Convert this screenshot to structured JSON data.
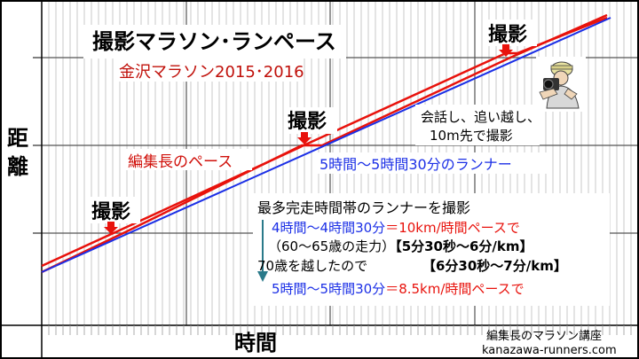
{
  "title": "撮影マラソン･ランペース",
  "subtitle": "金沢マラソン2015･2016",
  "axis": {
    "y": [
      "距",
      "離"
    ],
    "x": "時間"
  },
  "photo_labels": [
    "撮影",
    "撮影",
    "撮影"
  ],
  "callout": [
    "会話し、追い越し、",
    "10m先で撮影"
  ],
  "red_label": "編集長のペース",
  "blue_label": "5時間～5時間30分のランナー",
  "info": {
    "heading": "最多完走時間帯のランナーを撮影",
    "l1_black": "4時間～4時間30分",
    "l1_red": "＝10km/時間ペースで",
    "l2_black": "（60～65歳の走力）",
    "l2_bracket": "【5分30秒～6分/km】",
    "l3_black": "70歳を越したので",
    "l3_bracket": "【6分30秒～7分/km】",
    "l4_blue": "5時間～5時間30分",
    "l4_red": "＝8.5km/時間ペースで"
  },
  "credit": [
    "編集長のマラソン講座",
    "kanazawa-runners.com"
  ],
  "colors": {
    "red": "#e8120c",
    "blue": "#1b2fe6",
    "arrow": "#2a7a8a",
    "bracket": "#b04020"
  },
  "icons": [
    "photographer-icon",
    "down-arrow-icon"
  ]
}
